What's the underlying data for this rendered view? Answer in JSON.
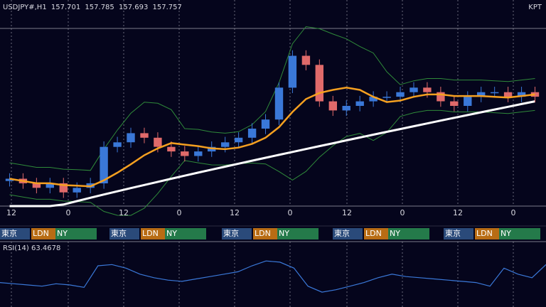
{
  "symbol": "USDJPY#,H1",
  "quote": {
    "open": "157.701",
    "high": "157.785",
    "low": "157.693",
    "close": "157.757"
  },
  "corner_label": "KPT",
  "time_axis_labels": [
    "12",
    "0",
    "12",
    "0",
    "12",
    "0",
    "12",
    "0",
    "12",
    "0"
  ],
  "sessions": {
    "tokyo": "東京",
    "london": "LDN",
    "newyork": "NY"
  },
  "rsi": {
    "label": "RSI(14)",
    "value": "63.4678"
  },
  "colors": {
    "background": "#05051c",
    "bull": "#3a78d8",
    "bear": "#e06a6a",
    "ma": "#f5a020",
    "long_ma": "#ffffff",
    "bands": "#2f8a3a",
    "rsi": "#3a78d8",
    "tokyo": "#2a4a7a",
    "london": "#b86c14",
    "newyork": "#247a4a"
  },
  "chart_data": [
    {
      "type": "candlestick",
      "title": "USDJPY#,H1",
      "candles_close_approx": [
        155.9,
        155.8,
        155.7,
        155.8,
        155.6,
        155.7,
        155.8,
        156.6,
        156.7,
        156.9,
        156.8,
        156.6,
        156.5,
        156.4,
        156.5,
        156.6,
        156.7,
        156.8,
        157.0,
        157.2,
        157.9,
        158.6,
        158.4,
        157.6,
        157.4,
        157.5,
        157.6,
        157.7,
        157.7,
        157.8,
        157.9,
        157.8,
        157.6,
        157.5,
        157.7,
        157.8,
        157.8,
        157.7,
        157.8,
        157.7
      ],
      "indicators": [
        "moving average (orange)",
        "long moving average (white)",
        "bollinger bands (green)"
      ]
    },
    {
      "type": "line",
      "title": "RSI(14) 63.4678",
      "values_approx": [
        48,
        47,
        46,
        45,
        47,
        46,
        44,
        62,
        63,
        60,
        55,
        52,
        50,
        49,
        51,
        53,
        55,
        57,
        62,
        66,
        65,
        60,
        45,
        40,
        42,
        45,
        48,
        52,
        55,
        53,
        52,
        51,
        50,
        49,
        48,
        45,
        60,
        55,
        52,
        63
      ]
    }
  ]
}
